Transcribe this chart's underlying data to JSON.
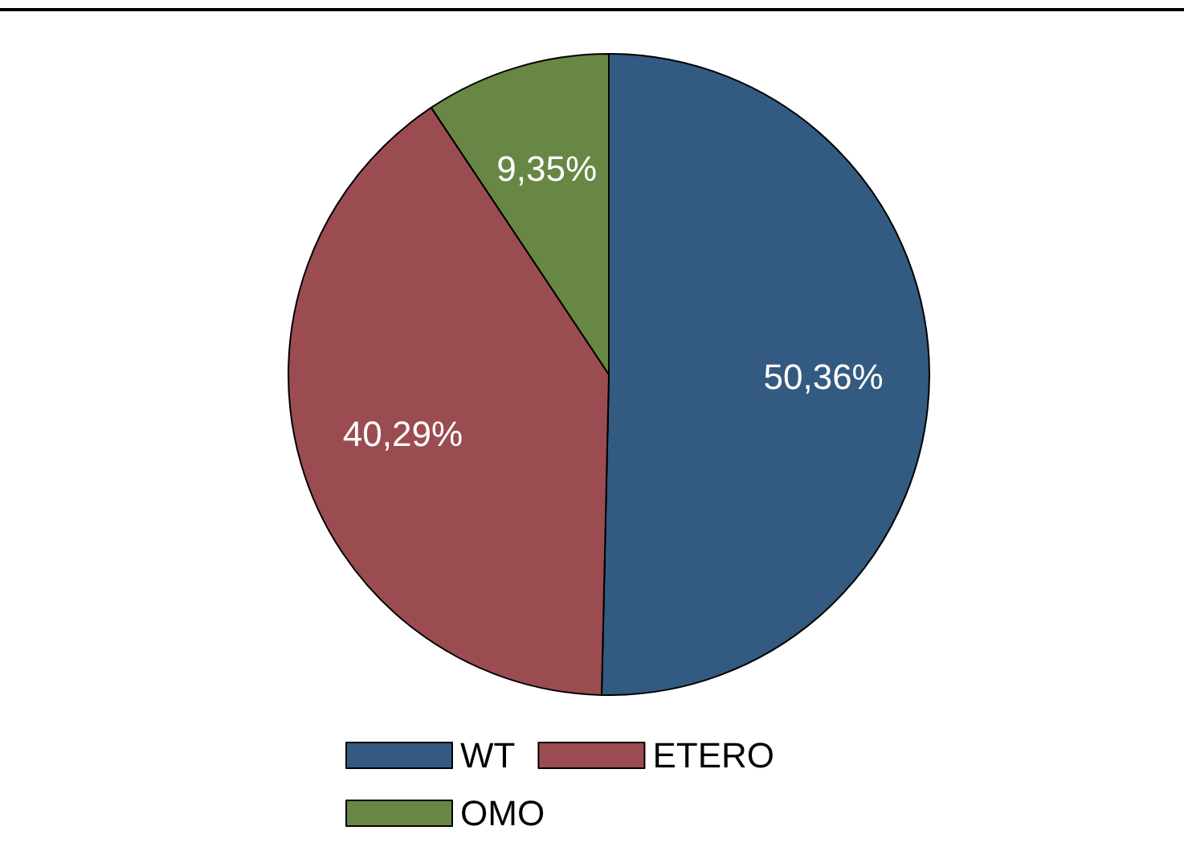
{
  "chart_data": {
    "type": "pie",
    "categories": [
      "WT",
      "ETERO",
      "OMO"
    ],
    "values": [
      50.36,
      40.29,
      9.35
    ],
    "colors": [
      "#335a80",
      "#9b4c51",
      "#688644"
    ],
    "value_labels": [
      "50,36%",
      "40,29%",
      "9,35%"
    ],
    "legend": "bottom"
  }
}
